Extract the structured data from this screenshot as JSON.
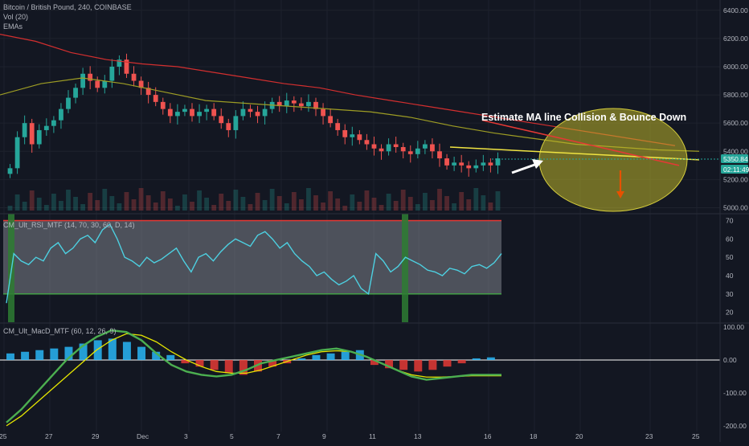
{
  "header": {
    "title": "Bitcoin / British Pound, 240, COINBASE",
    "vol_label": "Vol (20)",
    "ema_label": "EMAs"
  },
  "annotation": {
    "text": "Estimate MA line Collision & Bounce Down"
  },
  "price_tags": {
    "last_price": "5350.84",
    "countdown": "02:11:49"
  },
  "colors": {
    "background": "#131722",
    "grid": "#1e222d",
    "candle_up": "#26a69a",
    "candle_down": "#ef5350",
    "ema_red": "#d32f2f",
    "ema_olive": "#9e9d24",
    "rsi_line": "#4dd0e1",
    "rsi_upper": "#e53935",
    "rsi_lower": "#43a047",
    "macd_green": "#4caf50",
    "macd_yellow": "#e6e600",
    "ellipse": "#bdb52a",
    "price_tag": "#26a69a"
  },
  "chart_data": [
    {
      "type": "candlestick",
      "title": "Bitcoin / British Pound, 240, COINBASE",
      "y_ticks": [
        "6400.00",
        "6200.00",
        "6000.00",
        "5800.00",
        "5600.00",
        "5400.00",
        "5200.00",
        "5000.00"
      ],
      "ylim": [
        4980,
        6450
      ],
      "x_ticks": [
        "25",
        "27",
        "29",
        "Dec",
        "3",
        "5",
        "7",
        "9",
        "11",
        "13",
        "16",
        "18",
        "20",
        "23",
        "25"
      ],
      "last_price": 5350.84,
      "closes": [
        5280,
        5500,
        5600,
        5450,
        5550,
        5580,
        5620,
        5700,
        5780,
        5850,
        5950,
        5900,
        5850,
        5900,
        6000,
        6050,
        5950,
        5900,
        5850,
        5800,
        5750,
        5700,
        5650,
        5680,
        5700,
        5650,
        5680,
        5700,
        5650,
        5600,
        5550,
        5650,
        5700,
        5680,
        5650,
        5700,
        5750,
        5720,
        5760,
        5740,
        5720,
        5750,
        5700,
        5650,
        5600,
        5550,
        5500,
        5520,
        5480,
        5450,
        5420,
        5400,
        5450,
        5430,
        5400,
        5380,
        5420,
        5450,
        5400,
        5350,
        5300,
        5320,
        5300,
        5280,
        5300,
        5320,
        5300,
        5350
      ],
      "series": [
        {
          "name": "EMA red",
          "values": [
            6230,
            6180,
            6100,
            6050,
            6020,
            6000,
            5960,
            5920,
            5880,
            5850,
            5800,
            5760,
            5720,
            5680,
            5640,
            5600,
            5560,
            5520,
            5480,
            5440
          ]
        },
        {
          "name": "EMA olive",
          "values": [
            5800,
            5880,
            5920,
            5880,
            5820,
            5760,
            5740,
            5720,
            5700,
            5680,
            5640,
            5580,
            5530,
            5490,
            5450,
            5430,
            5410,
            5400
          ]
        }
      ],
      "projection_yellow": [
        [
          0,
          5430
        ],
        [
          1,
          5340
        ]
      ],
      "projection_red": [
        [
          0,
          5620
        ],
        [
          1,
          5300
        ]
      ]
    },
    {
      "type": "line",
      "title": "CM_Ult_RSI_MTF (14, 70, 30, 60, D, 14)",
      "y_ticks": [
        "70",
        "60",
        "50",
        "40",
        "30",
        "20"
      ],
      "ylim": [
        15,
        72
      ],
      "upper": 70,
      "lower": 30,
      "values": [
        25,
        52,
        48,
        46,
        50,
        48,
        55,
        58,
        52,
        55,
        60,
        62,
        58,
        65,
        68,
        60,
        50,
        48,
        45,
        50,
        47,
        49,
        52,
        55,
        48,
        42,
        50,
        52,
        48,
        53,
        57,
        60,
        58,
        56,
        62,
        64,
        60,
        55,
        58,
        52,
        48,
        45,
        40,
        42,
        38,
        35,
        37,
        40,
        33,
        30,
        52,
        48,
        42,
        45,
        50,
        48,
        46,
        43,
        42,
        40,
        44,
        43,
        41,
        45,
        46,
        44,
        47,
        52
      ]
    },
    {
      "type": "line",
      "title": "CM_Ult_MacD_MTF (60, 12, 26, 9)",
      "y_ticks": [
        "100.00",
        "0.00",
        "-100.00",
        "-200.00"
      ],
      "ylim": [
        -215,
        105
      ],
      "macd": [
        -190,
        -150,
        -100,
        -50,
        0,
        40,
        70,
        90,
        85,
        60,
        20,
        -15,
        -35,
        -45,
        -50,
        -45,
        -30,
        -10,
        0,
        10,
        20,
        30,
        35,
        25,
        10,
        -10,
        -30,
        -50,
        -60,
        -55,
        -50,
        -45,
        -45,
        -45
      ],
      "signal": [
        -200,
        -170,
        -130,
        -90,
        -50,
        -10,
        30,
        60,
        80,
        75,
        55,
        25,
        0,
        -20,
        -35,
        -40,
        -40,
        -30,
        -15,
        0,
        15,
        25,
        28,
        25,
        10,
        -10,
        -30,
        -45,
        -52,
        -52,
        -50,
        -48,
        -48,
        -48
      ],
      "histogram": [
        20,
        25,
        30,
        35,
        40,
        50,
        60,
        65,
        55,
        40,
        25,
        15,
        -10,
        -20,
        -30,
        -40,
        -45,
        -35,
        -20,
        -10,
        5,
        15,
        20,
        25,
        30,
        -15,
        -25,
        -30,
        -35,
        -30,
        -20,
        -10,
        5,
        8
      ]
    }
  ]
}
